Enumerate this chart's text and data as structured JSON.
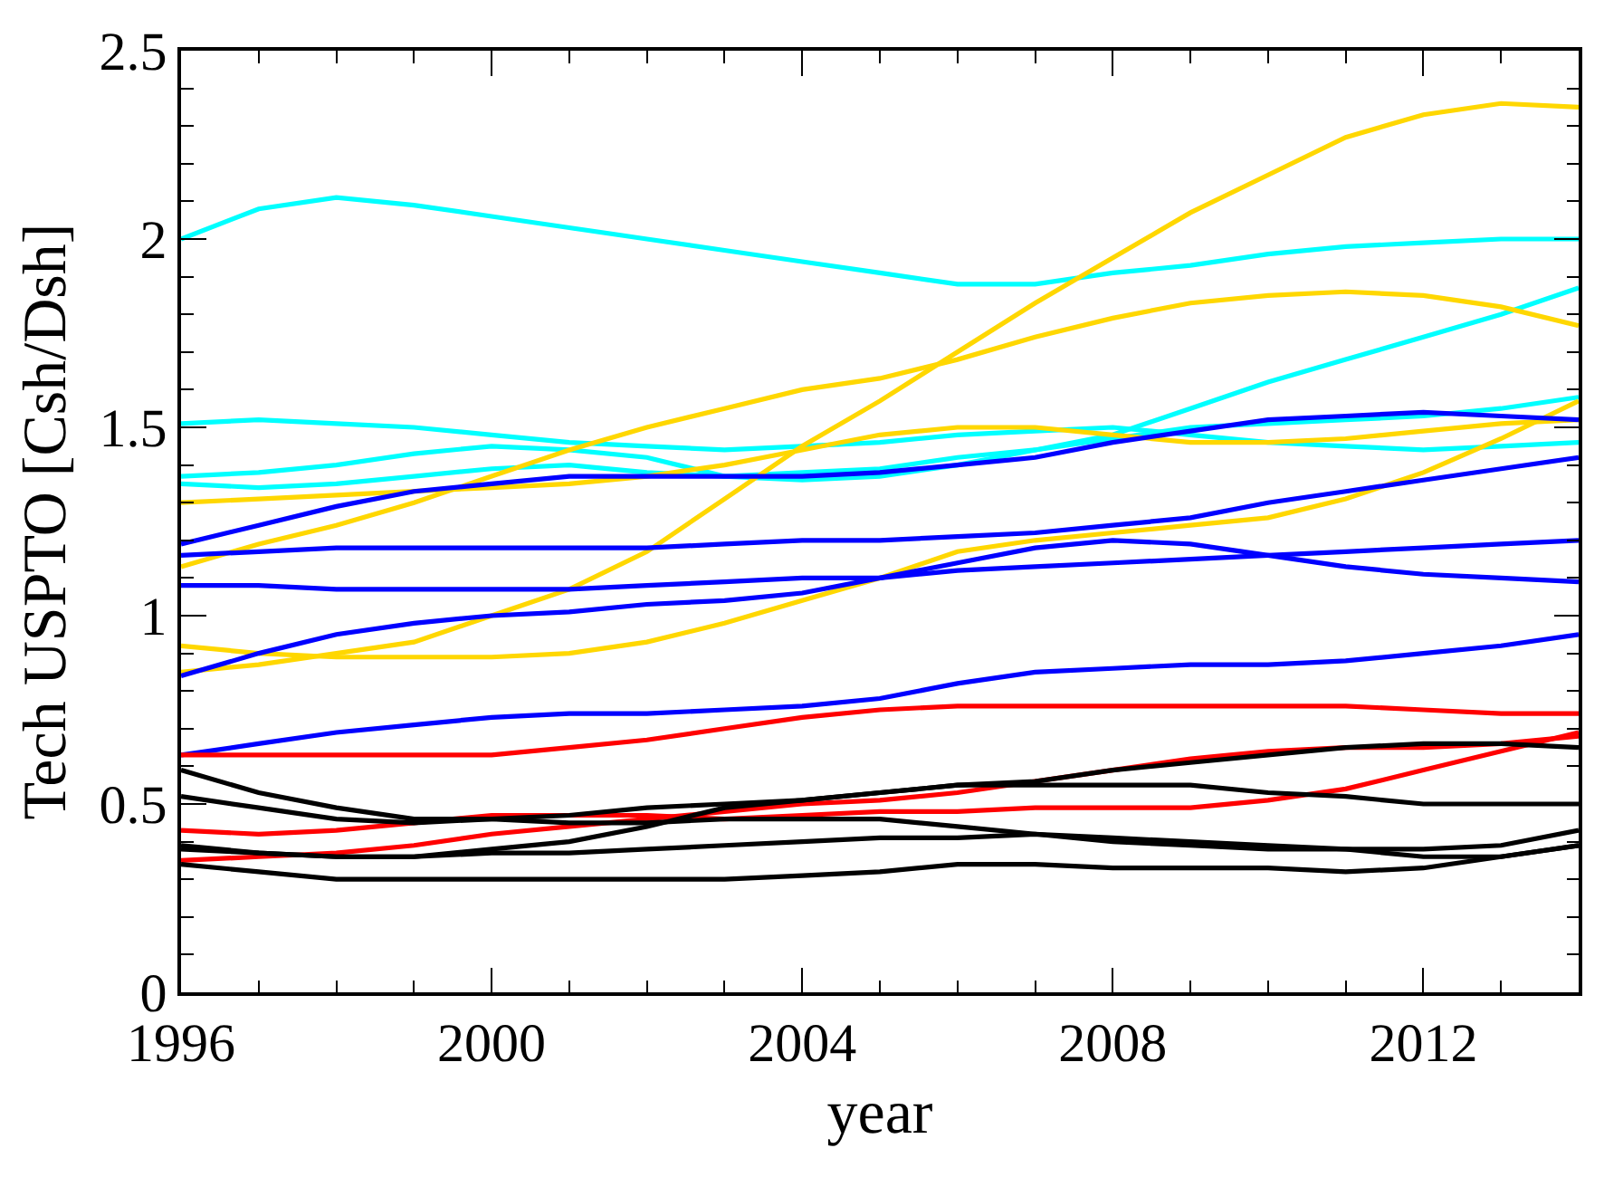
{
  "chart_data": {
    "type": "line",
    "xlabel": "year",
    "ylabel": "Tech USPTO [Csh/Dsh]",
    "x": [
      1996,
      1997,
      1998,
      1999,
      2000,
      2001,
      2002,
      2003,
      2004,
      2005,
      2006,
      2007,
      2008,
      2009,
      2010,
      2011,
      2012,
      2013,
      2014
    ],
    "series": [
      {
        "color": "#00ffff",
        "values": [
          2.0,
          2.08,
          2.11,
          2.09,
          2.06,
          2.03,
          2.0,
          1.97,
          1.94,
          1.91,
          1.88,
          1.88,
          1.91,
          1.93,
          1.96,
          1.98,
          1.99,
          2.0,
          2.0
        ]
      },
      {
        "color": "#00ffff",
        "values": [
          1.51,
          1.52,
          1.51,
          1.5,
          1.48,
          1.46,
          1.45,
          1.44,
          1.45,
          1.46,
          1.48,
          1.49,
          1.5,
          1.48,
          1.46,
          1.45,
          1.44,
          1.45,
          1.46
        ]
      },
      {
        "color": "#00ffff",
        "values": [
          1.37,
          1.38,
          1.4,
          1.43,
          1.45,
          1.44,
          1.42,
          1.37,
          1.36,
          1.37,
          1.4,
          1.44,
          1.48,
          1.55,
          1.62,
          1.68,
          1.74,
          1.8,
          1.87
        ]
      },
      {
        "color": "#00ffff",
        "values": [
          1.35,
          1.34,
          1.35,
          1.37,
          1.39,
          1.4,
          1.38,
          1.37,
          1.38,
          1.39,
          1.42,
          1.44,
          1.47,
          1.5,
          1.51,
          1.52,
          1.53,
          1.55,
          1.58
        ]
      },
      {
        "color": "#ffd700",
        "values": [
          0.85,
          0.87,
          0.9,
          0.93,
          1.0,
          1.07,
          1.17,
          1.31,
          1.45,
          1.57,
          1.7,
          1.83,
          1.95,
          2.07,
          2.17,
          2.27,
          2.33,
          2.36,
          2.35
        ]
      },
      {
        "color": "#ffd700",
        "values": [
          0.92,
          0.9,
          0.89,
          0.89,
          0.89,
          0.9,
          0.93,
          0.98,
          1.04,
          1.1,
          1.17,
          1.2,
          1.22,
          1.24,
          1.26,
          1.31,
          1.38,
          1.47,
          1.57
        ]
      },
      {
        "color": "#ffd700",
        "values": [
          1.3,
          1.31,
          1.32,
          1.33,
          1.34,
          1.35,
          1.37,
          1.4,
          1.44,
          1.48,
          1.5,
          1.5,
          1.48,
          1.46,
          1.46,
          1.47,
          1.49,
          1.51,
          1.52
        ]
      },
      {
        "color": "#ffd700",
        "values": [
          1.13,
          1.19,
          1.24,
          1.3,
          1.37,
          1.44,
          1.5,
          1.55,
          1.6,
          1.63,
          1.68,
          1.74,
          1.79,
          1.83,
          1.85,
          1.86,
          1.85,
          1.82,
          1.77
        ]
      },
      {
        "color": "#0000ff",
        "values": [
          1.19,
          1.24,
          1.29,
          1.33,
          1.35,
          1.37,
          1.37,
          1.37,
          1.37,
          1.38,
          1.4,
          1.42,
          1.46,
          1.49,
          1.52,
          1.53,
          1.54,
          1.53,
          1.52
        ]
      },
      {
        "color": "#0000ff",
        "values": [
          1.16,
          1.17,
          1.18,
          1.18,
          1.18,
          1.18,
          1.18,
          1.19,
          1.2,
          1.2,
          1.21,
          1.22,
          1.24,
          1.26,
          1.3,
          1.33,
          1.36,
          1.39,
          1.42
        ]
      },
      {
        "color": "#0000ff",
        "values": [
          1.08,
          1.08,
          1.07,
          1.07,
          1.07,
          1.07,
          1.08,
          1.09,
          1.1,
          1.1,
          1.12,
          1.13,
          1.14,
          1.15,
          1.16,
          1.17,
          1.18,
          1.19,
          1.2
        ]
      },
      {
        "color": "#0000ff",
        "values": [
          0.84,
          0.9,
          0.95,
          0.98,
          1.0,
          1.01,
          1.03,
          1.04,
          1.06,
          1.1,
          1.14,
          1.18,
          1.2,
          1.19,
          1.16,
          1.13,
          1.11,
          1.1,
          1.09
        ]
      },
      {
        "color": "#0000ff",
        "values": [
          0.63,
          0.66,
          0.69,
          0.71,
          0.73,
          0.74,
          0.74,
          0.75,
          0.76,
          0.78,
          0.82,
          0.85,
          0.86,
          0.87,
          0.87,
          0.88,
          0.9,
          0.92,
          0.95
        ]
      },
      {
        "color": "#ff0000",
        "values": [
          0.63,
          0.63,
          0.63,
          0.63,
          0.63,
          0.65,
          0.67,
          0.7,
          0.73,
          0.75,
          0.76,
          0.76,
          0.76,
          0.76,
          0.76,
          0.76,
          0.75,
          0.74,
          0.74
        ]
      },
      {
        "color": "#ff0000",
        "values": [
          0.43,
          0.42,
          0.43,
          0.45,
          0.47,
          0.47,
          0.47,
          0.46,
          0.47,
          0.48,
          0.48,
          0.49,
          0.49,
          0.49,
          0.51,
          0.54,
          0.59,
          0.64,
          0.69
        ]
      },
      {
        "color": "#ff0000",
        "values": [
          0.35,
          0.36,
          0.37,
          0.39,
          0.42,
          0.44,
          0.46,
          0.48,
          0.5,
          0.51,
          0.53,
          0.56,
          0.59,
          0.62,
          0.64,
          0.65,
          0.65,
          0.66,
          0.68
        ]
      },
      {
        "color": "#000000",
        "values": [
          0.59,
          0.53,
          0.49,
          0.46,
          0.46,
          0.45,
          0.45,
          0.46,
          0.46,
          0.46,
          0.44,
          0.42,
          0.4,
          0.39,
          0.38,
          0.38,
          0.38,
          0.39,
          0.43
        ]
      },
      {
        "color": "#000000",
        "values": [
          0.52,
          0.49,
          0.46,
          0.45,
          0.46,
          0.47,
          0.49,
          0.5,
          0.51,
          0.53,
          0.55,
          0.55,
          0.55,
          0.55,
          0.53,
          0.52,
          0.5,
          0.5,
          0.5
        ]
      },
      {
        "color": "#000000",
        "values": [
          0.39,
          0.37,
          0.36,
          0.36,
          0.38,
          0.4,
          0.44,
          0.49,
          0.51,
          0.53,
          0.55,
          0.56,
          0.59,
          0.61,
          0.63,
          0.65,
          0.66,
          0.66,
          0.65
        ]
      },
      {
        "color": "#000000",
        "values": [
          0.38,
          0.37,
          0.36,
          0.36,
          0.37,
          0.37,
          0.38,
          0.39,
          0.4,
          0.41,
          0.41,
          0.42,
          0.41,
          0.4,
          0.39,
          0.38,
          0.36,
          0.36,
          0.39
        ]
      },
      {
        "color": "#000000",
        "values": [
          0.34,
          0.32,
          0.3,
          0.3,
          0.3,
          0.3,
          0.3,
          0.3,
          0.31,
          0.32,
          0.34,
          0.34,
          0.33,
          0.33,
          0.33,
          0.32,
          0.33,
          0.36,
          0.39
        ]
      }
    ],
    "xlim": [
      1996,
      2014
    ],
    "xticks": [
      1996,
      {
        "value": 1997,
        "label": null
      },
      {
        "value": 1998,
        "label": null
      },
      {
        "value": 1999,
        "label": null
      },
      2000,
      {
        "value": 2001,
        "label": null
      },
      {
        "value": 2002,
        "label": null
      },
      {
        "value": 2003,
        "label": null
      },
      2004,
      {
        "value": 2005,
        "label": null
      },
      {
        "value": 2006,
        "label": null
      },
      {
        "value": 2007,
        "label": null
      },
      2008,
      {
        "value": 2009,
        "label": null
      },
      {
        "value": 2010,
        "label": null
      },
      {
        "value": 2011,
        "label": null
      },
      2012,
      {
        "value": 2013,
        "label": null
      },
      {
        "value": 2014,
        "label": null
      }
    ],
    "ylim": [
      0,
      2.5
    ],
    "yticks": [
      0,
      {
        "value": 0.1,
        "label": null
      },
      {
        "value": 0.2,
        "label": null
      },
      {
        "value": 0.3,
        "label": null
      },
      {
        "value": 0.4,
        "label": null
      },
      0.5,
      {
        "value": 0.6,
        "label": null
      },
      {
        "value": 0.7,
        "label": null
      },
      {
        "value": 0.8,
        "label": null
      },
      {
        "value": 0.9,
        "label": null
      },
      1,
      {
        "value": 1.1,
        "label": null
      },
      {
        "value": 1.2,
        "label": null
      },
      {
        "value": 1.3,
        "label": null
      },
      {
        "value": 1.4,
        "label": null
      },
      1.5,
      {
        "value": 1.6,
        "label": null
      },
      {
        "value": 1.7,
        "label": null
      },
      {
        "value": 1.8,
        "label": null
      },
      {
        "value": 1.9,
        "label": null
      },
      2,
      {
        "value": 2.1,
        "label": null
      },
      {
        "value": 2.2,
        "label": null
      },
      {
        "value": 2.3,
        "label": null
      },
      {
        "value": 2.4,
        "label": null
      },
      2.5
    ],
    "marker": "none",
    "line_style": "solid"
  }
}
